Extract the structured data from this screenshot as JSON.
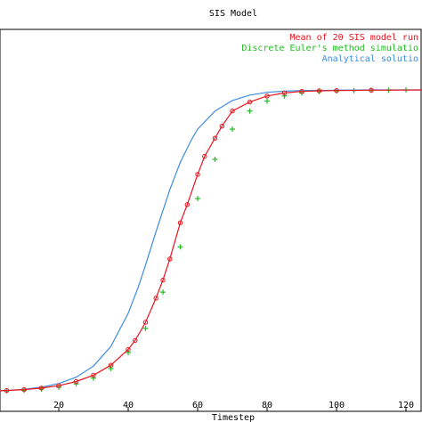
{
  "chart_data": {
    "type": "line",
    "title": "SIS Model",
    "xlabel": "Timestep",
    "ylabel": "",
    "xlim": [
      0,
      125
    ],
    "ylim": [
      0,
      1.0
    ],
    "grid": false,
    "legend": "top-right",
    "xticks": [
      20,
      40,
      60,
      80,
      100,
      120
    ],
    "series": [
      {
        "name": "Mean of 20 SIS model run",
        "color": "#e8141e",
        "marker": "circle",
        "x": [
          0,
          5,
          10,
          15,
          20,
          25,
          30,
          35,
          40,
          42,
          45,
          48,
          50,
          52,
          55,
          57,
          60,
          62,
          65,
          67,
          70,
          75,
          80,
          85,
          90,
          95,
          100,
          110,
          125
        ],
        "y": [
          0.002,
          0.004,
          0.007,
          0.012,
          0.02,
          0.034,
          0.055,
          0.088,
          0.14,
          0.17,
          0.23,
          0.31,
          0.37,
          0.44,
          0.56,
          0.62,
          0.72,
          0.78,
          0.84,
          0.88,
          0.93,
          0.96,
          0.98,
          0.99,
          0.995,
          0.997,
          0.998,
          0.999,
          1.0
        ]
      },
      {
        "name": "Discrete Euler's method simulatio",
        "color": "#22bb22",
        "marker": "plus",
        "x": [
          0,
          5,
          10,
          15,
          20,
          25,
          30,
          35,
          40,
          45,
          50,
          55,
          60,
          65,
          70,
          75,
          80,
          85,
          90,
          95,
          100,
          105,
          110,
          115,
          120,
          125
        ],
        "y": [
          0.002,
          0.003,
          0.005,
          0.009,
          0.015,
          0.026,
          0.045,
          0.077,
          0.13,
          0.21,
          0.33,
          0.48,
          0.64,
          0.77,
          0.87,
          0.93,
          0.963,
          0.98,
          0.99,
          0.995,
          0.997,
          0.998,
          0.999,
          0.999,
          1.0,
          1.0
        ]
      },
      {
        "name": "Analytical solutio",
        "color": "#3c8ce0",
        "marker": "none",
        "x": [
          0,
          5,
          10,
          15,
          20,
          25,
          30,
          35,
          40,
          43,
          45,
          48,
          50,
          52,
          55,
          58,
          60,
          65,
          70,
          75,
          80,
          85,
          90,
          100,
          110,
          125
        ],
        "y": [
          0.002,
          0.004,
          0.008,
          0.015,
          0.027,
          0.048,
          0.085,
          0.15,
          0.26,
          0.35,
          0.42,
          0.53,
          0.6,
          0.67,
          0.76,
          0.83,
          0.87,
          0.93,
          0.965,
          0.983,
          0.992,
          0.996,
          0.998,
          0.999,
          1.0,
          1.0
        ]
      }
    ]
  }
}
